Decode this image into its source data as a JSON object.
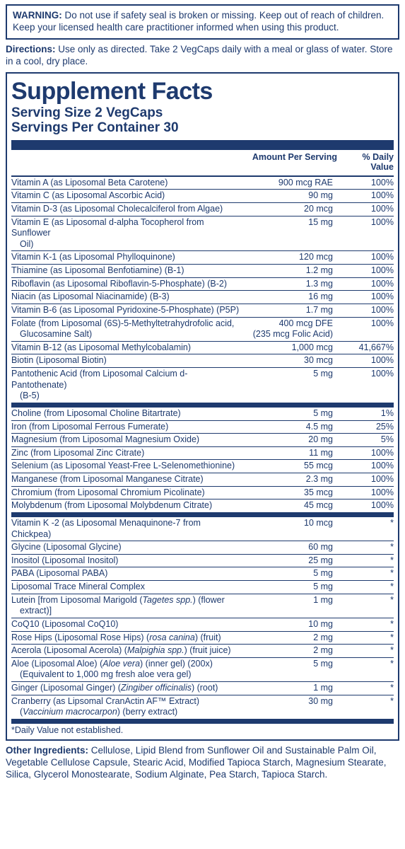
{
  "warning": {
    "label": "WARNING:",
    "text": "Do not use if safety seal is broken or missing. Keep out of reach of children. Keep your licensed health care practitioner informed when using this product."
  },
  "directions": {
    "label": "Directions:",
    "text": "Use only as directed. Take 2 VegCaps daily with a meal or glass of water. Store in a cool, dry place."
  },
  "title": "Supplement Facts",
  "serving_size": "Serving Size 2 VegCaps",
  "servings_per": "Servings Per Container 30",
  "head_amount": "Amount Per Serving",
  "head_dv": "% Daily Value",
  "sec1": [
    {
      "n": "Vitamin A (as Liposomal Beta Carotene)",
      "a": "900 mcg RAE",
      "d": "100%"
    },
    {
      "n": "Vitamin C (as Liposomal Ascorbic Acid)",
      "a": "90 mg",
      "d": "100%"
    },
    {
      "n": "Vitamin D-3 (as Liposomal Cholecalciferol from Algae)",
      "a": "20 mcg",
      "d": "100%"
    },
    {
      "n": "Vitamin E (as Liposomal d-alpha Tocopherol from Sunflower",
      "ns": "Oil)",
      "a": "15 mg",
      "d": "100%"
    },
    {
      "n": "Vitamin K-1 (as Liposomal Phylloquinone)",
      "a": "120 mcg",
      "d": "100%"
    },
    {
      "n": "Thiamine (as Liposomal Benfotiamine) (B-1)",
      "a": "1.2 mg",
      "d": "100%"
    },
    {
      "n": "Riboflavin (as Liposomal Riboflavin-5-Phosphate) (B-2)",
      "a": "1.3 mg",
      "d": "100%"
    },
    {
      "n": "Niacin (as Liposomal Niacinamide) (B-3)",
      "a": "16 mg",
      "d": "100%"
    },
    {
      "n": "Vitamin B-6 (as Liposomal Pyridoxine-5-Phosphate) (P5P)",
      "a": "1.7 mg",
      "d": "100%"
    },
    {
      "n": "Folate (from Liposomal (6S)-5-Methyltetrahydrofolic acid,",
      "ns": "Glucosamine Salt)",
      "a": "400 mcg DFE",
      "as": "(235 mcg Folic Acid)",
      "d": "100%"
    },
    {
      "n": "Vitamin B-12 (as Liposomal Methylcobalamin)",
      "a": "1,000 mcg",
      "d": "41,667%"
    },
    {
      "n": "Biotin (Liposomal Biotin)",
      "a": "30 mcg",
      "d": "100%"
    },
    {
      "n": "Pantothenic Acid (from Liposomal Calcium d-Pantothenate)",
      "ns": "(B-5)",
      "a": "5 mg",
      "d": "100%"
    }
  ],
  "sec2": [
    {
      "n": "Choline (from Liposomal Choline Bitartrate)",
      "a": "5 mg",
      "d": "1%"
    },
    {
      "n": "Iron (from Liposomal Ferrous Fumerate)",
      "a": "4.5 mg",
      "d": "25%"
    },
    {
      "n": "Magnesium (from Liposomal Magnesium Oxide)",
      "a": "20 mg",
      "d": "5%"
    },
    {
      "n": "Zinc (from Liposomal Zinc Citrate)",
      "a": "11 mg",
      "d": "100%"
    },
    {
      "n": "Selenium (as Liposomal Yeast-Free L-Selenomethionine)",
      "a": "55 mcg",
      "d": "100%"
    },
    {
      "n": "Manganese (from Liposomal Manganese Citrate)",
      "a": "2.3 mg",
      "d": "100%"
    },
    {
      "n": "Chromium (from Liposomal Chromium Picolinate)",
      "a": "35 mcg",
      "d": "100%"
    },
    {
      "n": "Molybdenum (from Liposomal Molybdenum Citrate)",
      "a": "45 mcg",
      "d": "100%"
    }
  ],
  "sec3": [
    {
      "n": "Vitamin K -2 (as Liposomal Menaquinone-7 from Chickpea)",
      "a": "10 mcg",
      "d": "*"
    },
    {
      "n": "Glycine (Liposomal Glycine)",
      "a": "60 mg",
      "d": "*"
    },
    {
      "n": "Inositol (Liposomal Inositol)",
      "a": "25 mg",
      "d": "*"
    },
    {
      "n": "PABA (Liposomal PABA)",
      "a": "5 mg",
      "d": "*"
    },
    {
      "n": "Liposomal Trace Mineral Complex",
      "a": "5 mg",
      "d": "*"
    },
    {
      "n": "Lutein [from Liposomal Marigold (<em>Tagetes spp.</em>) (flower",
      "ns": "extract)]",
      "a": "1 mg",
      "d": "*"
    },
    {
      "n": "CoQ10 (Liposomal CoQ10)",
      "a": "10 mg",
      "d": "*"
    },
    {
      "n": "Rose Hips (Liposomal Rose Hips) (<em>rosa canina</em>) (fruit)",
      "a": "2 mg",
      "d": "*"
    },
    {
      "n": "Acerola (Liposomal Acerola) (<em>Malpighia spp.</em>) (fruit juice)",
      "a": "2 mg",
      "d": "*"
    },
    {
      "n": "Aloe (Liposomal Aloe) (<em>Aloe vera</em>) (inner gel) (200x)",
      "ns": "(Equivalent to 1,000 mg fresh aloe vera gel)",
      "a": "5 mg",
      "d": "*"
    },
    {
      "n": "Ginger (Liposomal Ginger) (<em>Zingiber officinalis</em>) (root)",
      "a": "1 mg",
      "d": "*"
    },
    {
      "n": "Cranberry (as Lipsomal CranActin AF™ Extract)",
      "ns": "(<em>Vaccinium macrocarpon</em>) (berry extract)",
      "a": "30 mg",
      "d": "*"
    }
  ],
  "dv_note": "*Daily Value not established.",
  "other": {
    "label": "Other Ingredients:",
    "text": "Cellulose, Lipid Blend from Sunflower Oil and Sustainable Palm Oil, Vegetable Cellulose Capsule, Stearic Acid, Modified Tapioca Starch, Magnesium Stearate, Silica, Glycerol Monostearate, Sodium Alginate, Pea Starch, Tapioca Starch."
  }
}
